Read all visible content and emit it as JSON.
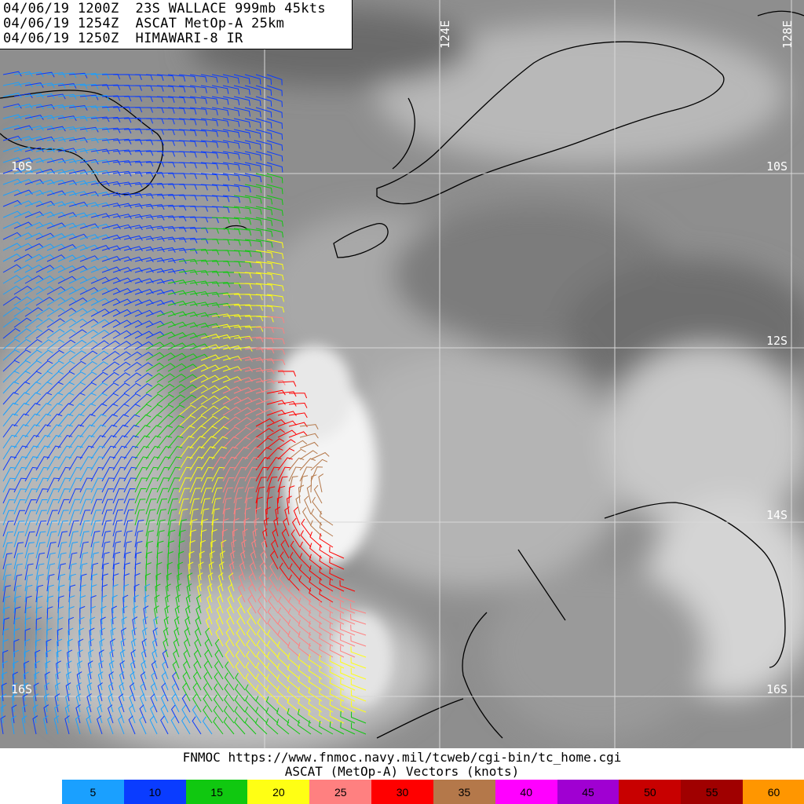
{
  "header": {
    "line1": "04/06/19 1200Z  23S WALLACE 999mb 45kts",
    "line2": "04/06/19 1254Z  ASCAT MetOp-A 25km",
    "line3": "04/06/19 1250Z  HIMAWARI-8 IR"
  },
  "grid_labels": {
    "lon_124": "124E",
    "lon_128": "128E",
    "lat_10_left": "10S",
    "lat_10_right": "10S",
    "lat_12": "12S",
    "lat_14": "14S",
    "lat_16_left": "16S",
    "lat_16_right": "16S"
  },
  "footer": {
    "credit": "FNMOC https://www.fnmoc.navy.mil/tcweb/cgi-bin/tc_home.cgi",
    "subtitle": "ASCAT (MetOp-A) Vectors (knots)"
  },
  "legend": [
    {
      "label": "5",
      "color": "#1aa0ff"
    },
    {
      "label": "10",
      "color": "#0a3cff"
    },
    {
      "label": "15",
      "color": "#10c810"
    },
    {
      "label": "20",
      "color": "#ffff14"
    },
    {
      "label": "25",
      "color": "#ff8080"
    },
    {
      "label": "30",
      "color": "#ff0000"
    },
    {
      "label": "35",
      "color": "#b4784a"
    },
    {
      "label": "40",
      "color": "#ff00ff"
    },
    {
      "label": "45",
      "color": "#a000d2"
    },
    {
      "label": "50",
      "color": "#c80000"
    },
    {
      "label": "55",
      "color": "#a00000"
    },
    {
      "label": "60",
      "color": "#ff9600"
    }
  ]
}
